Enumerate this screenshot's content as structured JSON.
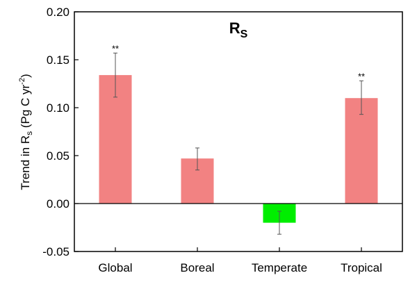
{
  "chart_data": {
    "type": "bar",
    "title": "R",
    "title_subscript": "S",
    "ylabel": "Trend in R",
    "ylabel_subscript": "s",
    "ylabel_units": " (Pg C yr",
    "ylabel_units_sup": "-2",
    "ylabel_close": ")",
    "xlabel": "",
    "ylim": [
      -0.05,
      0.2
    ],
    "yticks": [
      "-0.05",
      "0.00",
      "0.05",
      "0.10",
      "0.15",
      "0.20"
    ],
    "ytick_values": [
      -0.05,
      0,
      0.05,
      0.1,
      0.15,
      0.2
    ],
    "categories": [
      "Global",
      "Boreal",
      "Temperate",
      "Tropical"
    ],
    "values": [
      0.134,
      0.047,
      -0.02,
      0.11
    ],
    "error_low": [
      0.111,
      0.035,
      -0.032,
      0.093
    ],
    "error_high": [
      0.157,
      0.058,
      -0.008,
      0.128
    ],
    "annotations": [
      "**",
      "",
      "",
      "**"
    ],
    "colors": [
      "#f28282",
      "#f28282",
      "#00ee00",
      "#f28282"
    ],
    "grid": false,
    "zero_line": true
  }
}
